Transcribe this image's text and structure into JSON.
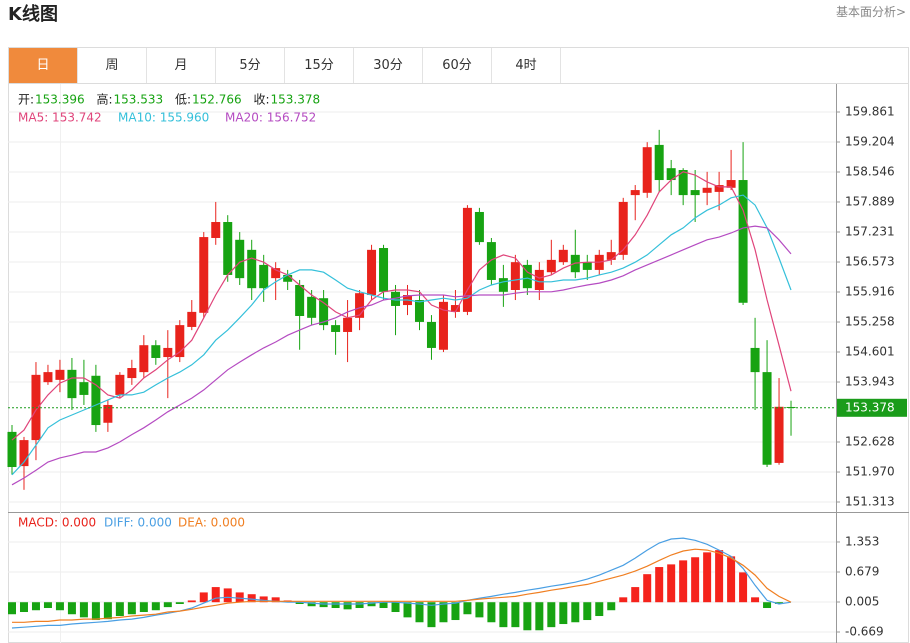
{
  "header": {
    "title": "K线图",
    "link": "基本面分析>"
  },
  "tabs": [
    "日",
    "周",
    "月",
    "5分",
    "15分",
    "30分",
    "60分",
    "4时"
  ],
  "active_tab": 0,
  "chart_data": [
    {
      "type": "candlestick",
      "up_color": "#e8231c",
      "down_color": "#17a312",
      "ohlc_labels": [
        "开:",
        "高:",
        "低:",
        "收:"
      ],
      "open": [
        152.85,
        152.1,
        152.67,
        153.94,
        153.99,
        154.21,
        153.94,
        154.08,
        153.05,
        153.66,
        154.03,
        154.16,
        154.75,
        154.49,
        154.49,
        155.15,
        155.46,
        157.1,
        157.45,
        157.06,
        156.84,
        156.51,
        156.22,
        156.29,
        156.07,
        155.81,
        155.78,
        155.19,
        155.04,
        155.35,
        155.85,
        156.88,
        155.92,
        155.63,
        155.74,
        155.26,
        154.65,
        155.48,
        155.48,
        157.67,
        157.01,
        156.22,
        155.96,
        156.51,
        155.96,
        156.35,
        156.57,
        156.73,
        156.57,
        156.4,
        156.62,
        156.73,
        158.04,
        158.09,
        159.14,
        158.63,
        158.59,
        158.15,
        158.09,
        158.11,
        158.2,
        158.37,
        154.69,
        154.16,
        152.17,
        153.396
      ],
      "high": [
        153.0,
        152.74,
        154.38,
        154.32,
        154.43,
        154.47,
        154.43,
        154.32,
        153.55,
        154.16,
        154.43,
        154.97,
        154.86,
        155.08,
        155.3,
        155.74,
        157.23,
        157.89,
        157.6,
        157.23,
        157.06,
        156.73,
        156.57,
        156.4,
        156.18,
        155.96,
        155.96,
        155.3,
        155.74,
        155.96,
        156.95,
        156.95,
        156.07,
        156.07,
        155.96,
        155.41,
        155.85,
        155.96,
        157.82,
        157.76,
        157.1,
        156.51,
        156.73,
        156.62,
        156.57,
        157.06,
        156.95,
        157.28,
        156.73,
        156.84,
        157.06,
        157.98,
        158.26,
        159.2,
        159.47,
        158.81,
        158.63,
        158.59,
        158.55,
        158.55,
        159.03,
        159.2,
        155.35,
        154.86,
        154.03,
        153.533
      ],
      "low": [
        151.91,
        151.58,
        152.23,
        153.88,
        153.72,
        153.33,
        153.44,
        152.85,
        152.85,
        153.59,
        153.88,
        154.03,
        154.32,
        153.59,
        154.38,
        155.08,
        155.35,
        156.95,
        156.14,
        156.07,
        155.74,
        155.7,
        155.74,
        155.96,
        154.65,
        155.19,
        155.08,
        154.54,
        154.38,
        155.08,
        155.74,
        155.74,
        154.97,
        155.41,
        155.08,
        154.43,
        154.6,
        155.35,
        155.41,
        156.95,
        156.07,
        155.59,
        155.74,
        155.85,
        155.74,
        156.29,
        156.51,
        156.22,
        156.18,
        156.29,
        156.51,
        156.62,
        157.49,
        157.98,
        158.11,
        158.04,
        157.82,
        157.45,
        157.82,
        157.71,
        158.15,
        155.63,
        153.33,
        152.08,
        152.13,
        152.766
      ],
      "close": [
        152.08,
        152.67,
        154.1,
        154.16,
        154.21,
        153.59,
        153.66,
        153.0,
        153.44,
        154.1,
        154.25,
        154.75,
        154.47,
        154.69,
        155.19,
        155.48,
        157.12,
        157.45,
        156.29,
        156.22,
        156.0,
        156.0,
        156.44,
        156.14,
        155.39,
        155.35,
        155.19,
        155.04,
        155.35,
        155.89,
        156.84,
        155.92,
        155.61,
        155.85,
        155.26,
        154.69,
        155.7,
        155.63,
        157.76,
        157.01,
        156.18,
        155.92,
        156.57,
        156.0,
        156.4,
        156.62,
        156.84,
        156.35,
        156.4,
        156.73,
        156.79,
        157.89,
        158.15,
        159.09,
        158.37,
        158.37,
        158.04,
        158.04,
        158.2,
        158.26,
        158.37,
        155.68,
        154.16,
        152.13,
        153.4,
        153.378
      ],
      "series": [
        {
          "legend": "MA5: 153.742",
          "color": "#e0457b",
          "values": [
            152.67,
            152.89,
            153.33,
            153.66,
            153.92,
            154.03,
            154.03,
            153.88,
            153.66,
            153.59,
            153.77,
            154.03,
            154.21,
            154.43,
            154.6,
            154.86,
            155.35,
            155.85,
            156.29,
            156.57,
            156.66,
            156.57,
            156.4,
            156.29,
            156.07,
            155.85,
            155.68,
            155.48,
            155.35,
            155.41,
            155.74,
            155.92,
            155.96,
            155.96,
            155.92,
            155.63,
            155.52,
            155.48,
            155.96,
            156.4,
            156.62,
            156.73,
            156.66,
            156.35,
            156.22,
            156.29,
            156.44,
            156.55,
            156.57,
            156.57,
            156.62,
            156.84,
            157.17,
            157.6,
            158.11,
            158.37,
            158.55,
            158.48,
            158.33,
            158.22,
            158.22,
            157.71,
            156.84,
            155.74,
            154.75,
            153.742
          ]
        },
        {
          "legend": "MA10: 155.960",
          "color": "#35c0da",
          "values": [
            151.91,
            152.19,
            152.56,
            152.94,
            153.11,
            153.22,
            153.33,
            153.44,
            153.55,
            153.66,
            153.66,
            153.72,
            153.88,
            154.03,
            154.16,
            154.32,
            154.54,
            154.86,
            155.08,
            155.35,
            155.63,
            155.96,
            156.14,
            156.29,
            156.4,
            156.4,
            156.35,
            156.18,
            156.0,
            155.92,
            155.85,
            155.78,
            155.74,
            155.74,
            155.7,
            155.74,
            155.78,
            155.74,
            155.78,
            155.96,
            156.07,
            156.14,
            156.18,
            156.22,
            156.14,
            156.14,
            156.18,
            156.18,
            156.22,
            156.29,
            156.35,
            156.44,
            156.57,
            156.73,
            156.95,
            157.17,
            157.32,
            157.54,
            157.71,
            157.82,
            157.98,
            158.04,
            157.82,
            157.32,
            156.66,
            155.96
          ]
        },
        {
          "legend": "MA20: 156.752",
          "color": "#b54cc2",
          "values": [
            151.69,
            151.84,
            152.01,
            152.19,
            152.28,
            152.34,
            152.41,
            152.41,
            152.5,
            152.63,
            152.79,
            152.94,
            153.11,
            153.29,
            153.44,
            153.59,
            153.77,
            153.99,
            154.21,
            154.38,
            154.54,
            154.69,
            154.82,
            154.97,
            155.08,
            155.19,
            155.26,
            155.35,
            155.48,
            155.57,
            155.63,
            155.74,
            155.78,
            155.83,
            155.85,
            155.85,
            155.85,
            155.81,
            155.83,
            155.85,
            155.85,
            155.85,
            155.89,
            155.92,
            155.92,
            155.92,
            155.96,
            156.02,
            156.07,
            156.11,
            156.18,
            156.27,
            156.4,
            156.51,
            156.62,
            156.73,
            156.84,
            156.95,
            157.06,
            157.12,
            157.21,
            157.32,
            157.36,
            157.32,
            157.06,
            156.752
          ]
        }
      ],
      "last_price": 153.378,
      "last_price_color": "#1a9c1a",
      "ylim": [
        151.094,
        160.475
      ],
      "yticks": [
        159.861,
        159.204,
        158.546,
        157.889,
        157.231,
        156.573,
        155.916,
        155.258,
        154.601,
        153.943,
        152.628,
        {
          "value": 151.97,
          "label": "151.970"
        },
        151.313
      ],
      "grid": true
    },
    {
      "type": "macd",
      "legend": "MACD: 0.000",
      "up_color": "#f5231c",
      "down_color": "#17a312",
      "legend_color": "#e8231c",
      "values": [
        -0.27,
        -0.22,
        -0.18,
        -0.13,
        -0.18,
        -0.27,
        -0.34,
        -0.4,
        -0.38,
        -0.31,
        -0.27,
        -0.22,
        -0.18,
        -0.11,
        -0.04,
        0.04,
        0.22,
        0.34,
        0.31,
        0.22,
        0.18,
        0.13,
        0.11,
        0.04,
        -0.04,
        -0.09,
        -0.11,
        -0.13,
        -0.16,
        -0.13,
        -0.09,
        -0.13,
        -0.22,
        -0.34,
        -0.45,
        -0.56,
        -0.45,
        -0.4,
        -0.27,
        -0.34,
        -0.45,
        -0.56,
        -0.56,
        -0.63,
        -0.63,
        -0.56,
        -0.49,
        -0.45,
        -0.4,
        -0.31,
        -0.18,
        0.11,
        0.34,
        0.63,
        0.79,
        0.85,
        0.94,
        1.01,
        1.12,
        1.17,
        1.03,
        0.67,
        0.11,
        -0.13,
        -0.04,
        0
      ],
      "series": [
        {
          "legend": "DIFF: 0.000",
          "color": "#4a9fe3",
          "values": [
            -0.58,
            -0.56,
            -0.54,
            -0.52,
            -0.52,
            -0.49,
            -0.47,
            -0.45,
            -0.43,
            -0.4,
            -0.38,
            -0.34,
            -0.29,
            -0.25,
            -0.2,
            -0.13,
            -0.02,
            0.09,
            0.11,
            0.09,
            0.07,
            0.04,
            0.02,
            0,
            0,
            -0.02,
            -0.04,
            -0.04,
            -0.04,
            -0.04,
            -0.02,
            0,
            0,
            -0.02,
            -0.04,
            -0.07,
            -0.04,
            -0.02,
            0.04,
            0.09,
            0.13,
            0.18,
            0.22,
            0.27,
            0.31,
            0.36,
            0.4,
            0.45,
            0.52,
            0.61,
            0.72,
            0.83,
            0.99,
            1.17,
            1.33,
            1.42,
            1.44,
            1.39,
            1.3,
            1.17,
            1.03,
            0.76,
            0.38,
            0.04,
            -0.04,
            0
          ]
        },
        {
          "legend": "DEA: 0.000",
          "color": "#f07f22",
          "values": [
            -0.45,
            -0.45,
            -0.43,
            -0.43,
            -0.4,
            -0.4,
            -0.38,
            -0.38,
            -0.36,
            -0.34,
            -0.31,
            -0.29,
            -0.27,
            -0.22,
            -0.2,
            -0.16,
            -0.11,
            -0.07,
            -0.02,
            0,
            0.02,
            0.02,
            0.02,
            0.02,
            0.02,
            0.02,
            0.02,
            0.02,
            0.02,
            0.02,
            0.02,
            0.02,
            0.02,
            0.02,
            0.02,
            0.02,
            0.02,
            0.02,
            0.04,
            0.07,
            0.09,
            0.11,
            0.13,
            0.18,
            0.22,
            0.27,
            0.31,
            0.36,
            0.4,
            0.47,
            0.54,
            0.61,
            0.7,
            0.81,
            0.94,
            1.06,
            1.15,
            1.19,
            1.17,
            1.1,
            0.99,
            0.83,
            0.61,
            0.31,
            0.13,
            0
          ]
        }
      ],
      "ylim": [
        -0.916,
        2.004
      ],
      "yticks": [
        1.353,
        0.679,
        0.005,
        -0.669
      ],
      "grid": true
    }
  ]
}
